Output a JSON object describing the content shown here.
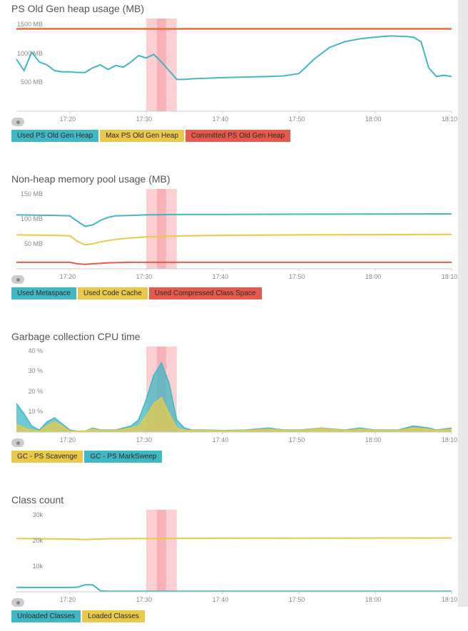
{
  "colors": {
    "cyan": "#3fb8c4",
    "cyan_fill": "rgba(63,184,196,0.75)",
    "yellow": "#e9c94a",
    "yellow_fill": "rgba(233,201,74,0.75)",
    "red": "#e65a4d",
    "highlight": "#f9a7ae",
    "highlight_core": "#f17884",
    "axis": "#cccccc",
    "text": "#555555",
    "legend_cyan_bg": "#3fb8c4",
    "legend_yellow_bg": "#e9c94a",
    "legend_red_bg": "#e65a4d"
  },
  "time_axis": {
    "min": 1033,
    "max": 1090,
    "ticks": [
      {
        "v": 1040,
        "label": "17:20"
      },
      {
        "v": 1050,
        "label": "17:30"
      },
      {
        "v": 1060,
        "label": "17:40"
      },
      {
        "v": 1070,
        "label": "17:50"
      },
      {
        "v": 1080,
        "label": "18:00"
      },
      {
        "v": 1090,
        "label": "18:10"
      }
    ],
    "highlight_start": 1050,
    "highlight_end": 1054
  },
  "panels": [
    {
      "id": "old-gen",
      "title": "PS Old Gen heap usage (MB)",
      "height": 130,
      "type": "line",
      "ylim": [
        0,
        1600
      ],
      "yticks": [
        {
          "v": 500,
          "label": "500 MB"
        },
        {
          "v": 1000,
          "label": "1000 MB"
        },
        {
          "v": 1500,
          "label": "1500 MB"
        }
      ],
      "series": [
        {
          "name": "Used PS Old Gen Heap",
          "color_key": "cyan",
          "fill": false,
          "data": [
            [
              1033,
              900
            ],
            [
              1034,
              700
            ],
            [
              1035,
              1020
            ],
            [
              1036,
              850
            ],
            [
              1037,
              800
            ],
            [
              1038,
              700
            ],
            [
              1039,
              680
            ],
            [
              1040,
              680
            ],
            [
              1041,
              670
            ],
            [
              1042,
              670
            ],
            [
              1043,
              750
            ],
            [
              1044,
              800
            ],
            [
              1045,
              720
            ],
            [
              1046,
              790
            ],
            [
              1047,
              760
            ],
            [
              1048,
              850
            ],
            [
              1049,
              960
            ],
            [
              1050,
              920
            ],
            [
              1051,
              980
            ],
            [
              1052,
              850
            ],
            [
              1053,
              700
            ],
            [
              1054,
              550
            ],
            [
              1055,
              550
            ],
            [
              1056,
              560
            ],
            [
              1058,
              570
            ],
            [
              1060,
              580
            ],
            [
              1063,
              590
            ],
            [
              1066,
              600
            ],
            [
              1068,
              610
            ],
            [
              1070,
              650
            ],
            [
              1072,
              900
            ],
            [
              1074,
              1100
            ],
            [
              1076,
              1200
            ],
            [
              1078,
              1250
            ],
            [
              1080,
              1280
            ],
            [
              1082,
              1300
            ],
            [
              1084,
              1290
            ],
            [
              1085,
              1280
            ],
            [
              1086,
              1200
            ],
            [
              1087,
              750
            ],
            [
              1088,
              600
            ],
            [
              1089,
              620
            ],
            [
              1090,
              600
            ]
          ]
        },
        {
          "name": "Max PS Old Gen Heap",
          "color_key": "yellow",
          "fill": false,
          "hidden_behind": true,
          "data": [
            [
              1033,
              1430
            ],
            [
              1090,
              1430
            ]
          ]
        },
        {
          "name": "Committed PS Old Gen Heap",
          "color_key": "red",
          "fill": false,
          "data": [
            [
              1033,
              1420
            ],
            [
              1090,
              1420
            ]
          ]
        }
      ],
      "legend": [
        {
          "label": "Used PS Old Gen Heap",
          "bg": "legend_cyan_bg"
        },
        {
          "label": "Max PS Old Gen Heap",
          "bg": "legend_yellow_bg"
        },
        {
          "label": "Committed PS Old Gen Heap",
          "bg": "legend_red_bg"
        }
      ]
    },
    {
      "id": "non-heap",
      "title": "Non-heap memory pool usage (MB)",
      "height": 112,
      "type": "line",
      "ylim": [
        0,
        160
      ],
      "yticks": [
        {
          "v": 50,
          "label": "50 MB"
        },
        {
          "v": 100,
          "label": "100 MB"
        },
        {
          "v": 150,
          "label": "150 MB"
        }
      ],
      "series": [
        {
          "name": "Used Metaspace",
          "color_key": "cyan",
          "fill": false,
          "data": [
            [
              1033,
              108
            ],
            [
              1038,
              107
            ],
            [
              1040,
              106
            ],
            [
              1041,
              95
            ],
            [
              1042,
              85
            ],
            [
              1043,
              88
            ],
            [
              1044,
              97
            ],
            [
              1045,
              103
            ],
            [
              1046,
              106
            ],
            [
              1048,
              107
            ],
            [
              1050,
              108
            ],
            [
              1055,
              109
            ],
            [
              1060,
              109
            ],
            [
              1090,
              110
            ]
          ]
        },
        {
          "name": "Used Code Cache",
          "color_key": "yellow",
          "fill": false,
          "data": [
            [
              1033,
              68
            ],
            [
              1038,
              67
            ],
            [
              1040,
              66
            ],
            [
              1041,
              55
            ],
            [
              1042,
              48
            ],
            [
              1043,
              50
            ],
            [
              1044,
              54
            ],
            [
              1046,
              59
            ],
            [
              1048,
              62
            ],
            [
              1050,
              64
            ],
            [
              1055,
              66
            ],
            [
              1060,
              67
            ],
            [
              1070,
              68
            ],
            [
              1090,
              69
            ]
          ]
        },
        {
          "name": "Used Compressed Class Space",
          "color_key": "red",
          "fill": false,
          "data": [
            [
              1033,
              13
            ],
            [
              1040,
              13
            ],
            [
              1041,
              10
            ],
            [
              1042,
              9
            ],
            [
              1043,
              10
            ],
            [
              1045,
              12
            ],
            [
              1048,
              13
            ],
            [
              1090,
              13
            ]
          ]
        }
      ],
      "legend": [
        {
          "label": "Used Metaspace",
          "bg": "legend_cyan_bg"
        },
        {
          "label": "Used Code Cache",
          "bg": "legend_yellow_bg"
        },
        {
          "label": "Used Compressed Class Space",
          "bg": "legend_red_bg"
        }
      ]
    },
    {
      "id": "gc-cpu",
      "title": "Garbage collection CPU time",
      "height": 120,
      "type": "area",
      "ylim": [
        0,
        42
      ],
      "yticks": [
        {
          "v": 10,
          "label": "10 %"
        },
        {
          "v": 20,
          "label": "20 %"
        },
        {
          "v": 30,
          "label": "30 %"
        },
        {
          "v": 40,
          "label": "40 %"
        }
      ],
      "series": [
        {
          "name": "GC - PS MarkSweep",
          "color_key": "cyan",
          "fill": true,
          "fill_key": "cyan_fill",
          "data": [
            [
              1033,
              14
            ],
            [
              1034,
              9
            ],
            [
              1035,
              3
            ],
            [
              1036,
              1
            ],
            [
              1037,
              5
            ],
            [
              1038,
              7
            ],
            [
              1039,
              4
            ],
            [
              1040,
              1
            ],
            [
              1041,
              0.5
            ],
            [
              1042,
              0.5
            ],
            [
              1043,
              2
            ],
            [
              1044,
              1
            ],
            [
              1045,
              1
            ],
            [
              1046,
              1
            ],
            [
              1047,
              2
            ],
            [
              1048,
              3
            ],
            [
              1049,
              6
            ],
            [
              1050,
              16
            ],
            [
              1051,
              28
            ],
            [
              1052,
              34
            ],
            [
              1053,
              24
            ],
            [
              1054,
              6
            ],
            [
              1055,
              2
            ],
            [
              1056,
              1
            ],
            [
              1058,
              1
            ],
            [
              1060,
              0.8
            ],
            [
              1063,
              1
            ],
            [
              1066,
              2
            ],
            [
              1068,
              1
            ],
            [
              1070,
              1
            ],
            [
              1073,
              2
            ],
            [
              1076,
              1
            ],
            [
              1078,
              2
            ],
            [
              1080,
              1
            ],
            [
              1083,
              1
            ],
            [
              1085,
              3
            ],
            [
              1087,
              2
            ],
            [
              1088,
              1
            ],
            [
              1090,
              2
            ]
          ]
        },
        {
          "name": "GC - PS Scavenge",
          "color_key": "yellow",
          "fill": true,
          "fill_key": "yellow_fill",
          "data": [
            [
              1033,
              4
            ],
            [
              1034,
              2
            ],
            [
              1035,
              1
            ],
            [
              1036,
              0.5
            ],
            [
              1037,
              3
            ],
            [
              1038,
              5
            ],
            [
              1039,
              3
            ],
            [
              1040,
              0.5
            ],
            [
              1041,
              0.5
            ],
            [
              1042,
              0.5
            ],
            [
              1043,
              1.5
            ],
            [
              1044,
              0.8
            ],
            [
              1045,
              0.8
            ],
            [
              1046,
              0.8
            ],
            [
              1047,
              1.5
            ],
            [
              1048,
              2
            ],
            [
              1049,
              3
            ],
            [
              1050,
              8
            ],
            [
              1051,
              14
            ],
            [
              1052,
              17
            ],
            [
              1053,
              9
            ],
            [
              1054,
              2
            ],
            [
              1055,
              1
            ],
            [
              1056,
              0.8
            ],
            [
              1058,
              0.8
            ],
            [
              1060,
              0.6
            ],
            [
              1063,
              0.8
            ],
            [
              1066,
              1.5
            ],
            [
              1068,
              0.8
            ],
            [
              1070,
              0.8
            ],
            [
              1073,
              1.8
            ],
            [
              1076,
              0.8
            ],
            [
              1078,
              1.5
            ],
            [
              1080,
              0.8
            ],
            [
              1083,
              0.8
            ],
            [
              1085,
              2
            ],
            [
              1087,
              1.5
            ],
            [
              1088,
              0.8
            ],
            [
              1090,
              1.5
            ]
          ]
        }
      ],
      "legend": [
        {
          "label": "GC - PS Scavenge",
          "bg": "legend_yellow_bg"
        },
        {
          "label": "GC - PS MarkSweep",
          "bg": "legend_cyan_bg"
        }
      ]
    },
    {
      "id": "class-count",
      "title": "Class count",
      "height": 115,
      "type": "line",
      "ylim": [
        0,
        32000
      ],
      "yticks": [
        {
          "v": 10000,
          "label": "10k"
        },
        {
          "v": 20000,
          "label": "20k"
        },
        {
          "v": 30000,
          "label": "30k"
        }
      ],
      "series": [
        {
          "name": "Loaded Classes",
          "color_key": "yellow",
          "fill": false,
          "data": [
            [
              1033,
              20800
            ],
            [
              1040,
              20600
            ],
            [
              1042,
              20400
            ],
            [
              1045,
              20700
            ],
            [
              1050,
              20800
            ],
            [
              1060,
              20900
            ],
            [
              1090,
              21000
            ]
          ]
        },
        {
          "name": "Unloaded Classes",
          "color_key": "cyan",
          "fill": false,
          "data": [
            [
              1033,
              1700
            ],
            [
              1040,
              1700
            ],
            [
              1041,
              1800
            ],
            [
              1042,
              2700
            ],
            [
              1043,
              2700
            ],
            [
              1044,
              400
            ],
            [
              1045,
              200
            ],
            [
              1050,
              200
            ],
            [
              1090,
              200
            ]
          ]
        }
      ],
      "legend": [
        {
          "label": "Unloaded Classes",
          "bg": "legend_cyan_bg"
        },
        {
          "label": "Loaded Classes",
          "bg": "legend_yellow_bg"
        }
      ]
    }
  ]
}
